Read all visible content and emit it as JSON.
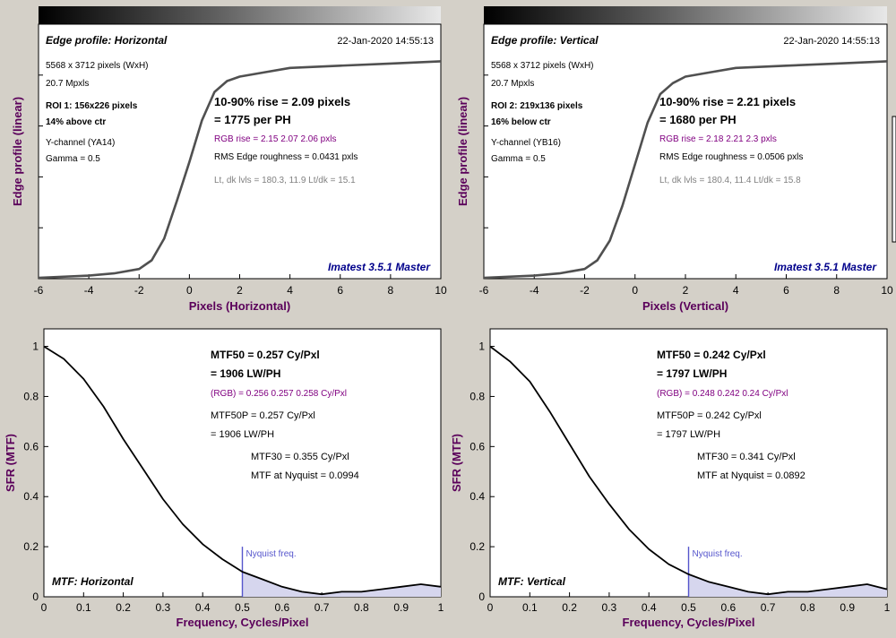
{
  "colors": {
    "background": "#d4d0c8",
    "axis_label": "#5a005a",
    "rgb_text": "#800080",
    "stamp": "#00008b",
    "gray_text": "#808080",
    "nyquist": "#5555cc",
    "nyquist_fill": "#d6d6ee",
    "curve": "#505050"
  },
  "panels": [
    {
      "id": "edge-h",
      "title": "Edge profile: Horizontal",
      "timestamp": "22-Jan-2020 14:55:13",
      "info": {
        "size": "5568 x 3712 pixels (WxH)",
        "mpxls": "20.7 Mpxls",
        "roi": "ROI 1:  156x226 pixels",
        "position": "14% above ctr",
        "channel": "Y-channel  (YA14)",
        "gamma": "Gamma = 0.5"
      },
      "results": {
        "rise": "10-90% rise = 2.09 pixels",
        "per_ph": "= 1775 per PH",
        "rgb_rise": "RGB rise = 2.15  2.07  2.06 pxls",
        "roughness": "RMS Edge roughness = 0.0431 pxls",
        "levels": "Lt, dk lvls = 180.3, 11.9   Lt/dk = 15.1"
      },
      "stamp": "Imatest 3.5.1 Master",
      "ylabel": "Edge profile (linear)",
      "xlabel": "Pixels (Horizontal)",
      "xticks": [
        "-6",
        "-4",
        "-2",
        "0",
        "2",
        "4",
        "6",
        "8",
        "10"
      ]
    },
    {
      "id": "edge-v",
      "title": "Edge profile: Vertical",
      "timestamp": "22-Jan-2020 14:55:13",
      "info": {
        "size": "5568 x 3712 pixels (WxH)",
        "mpxls": "20.7 Mpxls",
        "roi": "ROI 2:  219x136 pixels",
        "position": "16% below ctr",
        "channel": "Y-channel  (YB16)",
        "gamma": "Gamma = 0.5"
      },
      "results": {
        "rise": "10-90% rise = 2.21 pixels",
        "per_ph": "= 1680 per PH",
        "rgb_rise": "RGB rise = 2.18  2.21  2.3 pxls",
        "roughness": "RMS Edge roughness = 0.0506 pxls",
        "levels": "Lt, dk lvls = 180.4, 11.4   Lt/dk = 15.8"
      },
      "stamp": "Imatest 3.5.1 Master",
      "ylabel": "Edge profile (linear)",
      "xlabel": "Pixels (Vertical)",
      "xticks": [
        "-6",
        "-4",
        "-2",
        "0",
        "2",
        "4",
        "6",
        "8",
        "10"
      ]
    },
    {
      "id": "mtf-h",
      "corner_title": "MTF: Horizontal",
      "results": {
        "mtf50": "MTF50 = 0.257 Cy/Pxl",
        "lwph": "= 1906 LW/PH",
        "rgb": "(RGB) = 0.256  0.257  0.258 Cy/Pxl",
        "mtf50p": "MTF50P = 0.257 Cy/Pxl",
        "mtf50p_lwph": "= 1906 LW/PH",
        "mtf30": "MTF30 = 0.355 Cy/Pxl",
        "nyq": "MTF at Nyquist = 0.0994"
      },
      "nyquist_label": "Nyquist freq.",
      "ylabel": "SFR (MTF)",
      "xlabel": "Frequency, Cycles/Pixel",
      "xticks": [
        "0",
        "0.1",
        "0.2",
        "0.3",
        "0.4",
        "0.5",
        "0.6",
        "0.7",
        "0.8",
        "0.9",
        "1"
      ],
      "yticks": [
        "0",
        "0.2",
        "0.4",
        "0.6",
        "0.8",
        "1"
      ]
    },
    {
      "id": "mtf-v",
      "corner_title": "MTF: Vertical",
      "results": {
        "mtf50": "MTF50 = 0.242 Cy/Pxl",
        "lwph": "= 1797 LW/PH",
        "rgb": "(RGB) = 0.248  0.242  0.24 Cy/Pxl",
        "mtf50p": "MTF50P = 0.242 Cy/Pxl",
        "mtf50p_lwph": "= 1797 LW/PH",
        "mtf30": "MTF30 = 0.341 Cy/Pxl",
        "nyq": "MTF at Nyquist = 0.0892"
      },
      "nyquist_label": "Nyquist freq.",
      "ylabel": "SFR (MTF)",
      "xlabel": "Frequency, Cycles/Pixel",
      "xticks": [
        "0",
        "0.1",
        "0.2",
        "0.3",
        "0.4",
        "0.5",
        "0.6",
        "0.7",
        "0.8",
        "0.9",
        "1"
      ],
      "yticks": [
        "0",
        "0.2",
        "0.4",
        "0.6",
        "0.8",
        "1"
      ]
    }
  ],
  "chart_data": [
    {
      "type": "line",
      "title": "Edge profile: Horizontal",
      "xlabel": "Pixels (Horizontal)",
      "ylabel": "Edge profile (linear)",
      "xlim": [
        -6,
        10
      ],
      "ylim": [
        0,
        1
      ],
      "x": [
        -6,
        -4,
        -3,
        -2,
        -1.5,
        -1,
        -0.5,
        0,
        0.5,
        1,
        1.5,
        2,
        3,
        4,
        6,
        8,
        10
      ],
      "values": [
        0.0,
        0.01,
        0.02,
        0.04,
        0.08,
        0.18,
        0.35,
        0.53,
        0.72,
        0.85,
        0.9,
        0.92,
        0.94,
        0.96,
        0.97,
        0.98,
        0.99
      ]
    },
    {
      "type": "line",
      "title": "Edge profile: Vertical",
      "xlabel": "Pixels (Vertical)",
      "ylabel": "Edge profile (linear)",
      "xlim": [
        -6,
        10
      ],
      "ylim": [
        0,
        1
      ],
      "x": [
        -6,
        -4,
        -3,
        -2,
        -1.5,
        -1,
        -0.5,
        0,
        0.5,
        1,
        1.5,
        2,
        3,
        4,
        6,
        8,
        10
      ],
      "values": [
        0.0,
        0.01,
        0.02,
        0.04,
        0.08,
        0.17,
        0.33,
        0.52,
        0.71,
        0.84,
        0.89,
        0.92,
        0.94,
        0.96,
        0.97,
        0.98,
        0.99
      ]
    },
    {
      "type": "line",
      "title": "MTF: Horizontal",
      "xlabel": "Frequency, Cycles/Pixel",
      "ylabel": "SFR (MTF)",
      "xlim": [
        0,
        1
      ],
      "ylim": [
        0,
        1.07
      ],
      "nyquist": 0.5,
      "x": [
        0,
        0.05,
        0.1,
        0.15,
        0.2,
        0.25,
        0.3,
        0.35,
        0.4,
        0.45,
        0.5,
        0.55,
        0.6,
        0.65,
        0.7,
        0.75,
        0.8,
        0.85,
        0.9,
        0.95,
        1.0
      ],
      "values": [
        1.0,
        0.95,
        0.87,
        0.76,
        0.63,
        0.51,
        0.39,
        0.29,
        0.21,
        0.15,
        0.1,
        0.07,
        0.04,
        0.02,
        0.01,
        0.02,
        0.02,
        0.03,
        0.04,
        0.05,
        0.04
      ]
    },
    {
      "type": "line",
      "title": "MTF: Vertical",
      "xlabel": "Frequency, Cycles/Pixel",
      "ylabel": "SFR (MTF)",
      "xlim": [
        0,
        1
      ],
      "ylim": [
        0,
        1.07
      ],
      "nyquist": 0.5,
      "x": [
        0,
        0.05,
        0.1,
        0.15,
        0.2,
        0.25,
        0.3,
        0.35,
        0.4,
        0.45,
        0.5,
        0.55,
        0.6,
        0.65,
        0.7,
        0.75,
        0.8,
        0.85,
        0.9,
        0.95,
        1.0
      ],
      "values": [
        1.0,
        0.94,
        0.86,
        0.74,
        0.61,
        0.48,
        0.37,
        0.27,
        0.19,
        0.13,
        0.09,
        0.06,
        0.04,
        0.02,
        0.01,
        0.02,
        0.02,
        0.03,
        0.04,
        0.05,
        0.03
      ]
    }
  ]
}
